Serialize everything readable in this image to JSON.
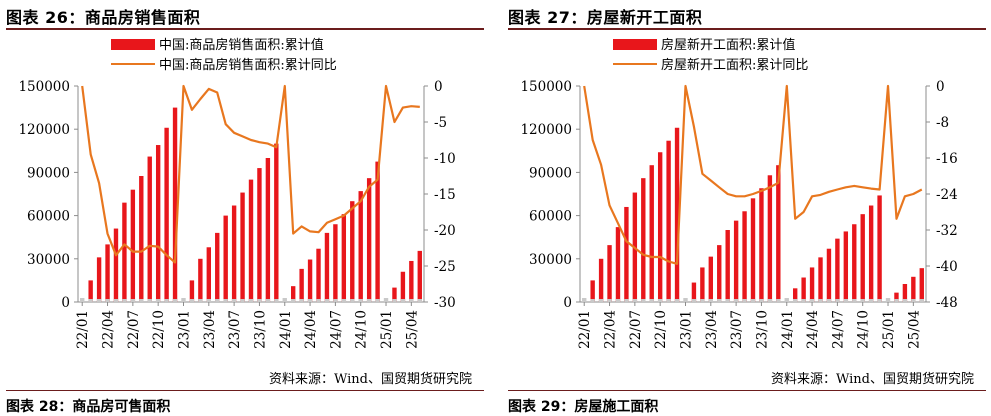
{
  "colors": {
    "bar": "#e8161b",
    "line": "#e8771f",
    "axis": "#8c8c8c",
    "bar_small": "#c9c9c9",
    "rule": "#6b1d1d"
  },
  "chart_data": [
    {
      "type": "bar",
      "figure_title": "图表 26：商品房销售面积",
      "source": "资料来源：Wind、国贸期货研究院",
      "legend": [
        "中国:商品房销售面积:累计值",
        "中国:商品房销售面积:累计同比"
      ],
      "legend_position": "top-center",
      "grid": false,
      "x": [
        "22/01",
        "22/02",
        "22/03",
        "22/04",
        "22/05",
        "22/06",
        "22/07",
        "22/08",
        "22/09",
        "22/10",
        "22/11",
        "22/12",
        "23/01",
        "23/02",
        "23/03",
        "23/04",
        "23/05",
        "23/06",
        "23/07",
        "23/08",
        "23/09",
        "23/10",
        "23/11",
        "23/12",
        "24/01",
        "24/02",
        "24/03",
        "24/04",
        "24/05",
        "24/06",
        "24/07",
        "24/08",
        "24/09",
        "24/10",
        "24/11",
        "24/12",
        "25/01",
        "25/02",
        "25/03",
        "25/04",
        "25/05"
      ],
      "x_tick_labels": [
        "22/01",
        "22/04",
        "22/07",
        "22/10",
        "23/01",
        "23/04",
        "23/07",
        "23/10",
        "24/01",
        "24/04",
        "24/07",
        "24/10",
        "25/01",
        "25/04"
      ],
      "y_left_ticks": [
        "0",
        "30000",
        "60000",
        "90000",
        "120000",
        "150000"
      ],
      "y_right_ticks": [
        "0",
        "-5",
        "-10",
        "-15",
        "-20",
        "-25",
        "-30"
      ],
      "ylim_left": [
        0,
        150000
      ],
      "ylim_right": [
        -30,
        0
      ],
      "series": [
        {
          "name": "中国:商品房销售面积:累计值",
          "axis": "left",
          "kind": "bar",
          "values": [
            null,
            15000,
            31000,
            40000,
            51000,
            69000,
            78000,
            87500,
            101000,
            109000,
            121000,
            135000,
            null,
            15000,
            30000,
            38000,
            48000,
            60000,
            67000,
            76000,
            85000,
            93000,
            100000,
            110000,
            null,
            11000,
            23000,
            29500,
            37000,
            48000,
            54000,
            61000,
            70000,
            77000,
            86000,
            97500,
            null,
            10000,
            21000,
            28500,
            35500
          ]
        },
        {
          "name": "中国:商品房销售面积:累计同比",
          "axis": "right",
          "kind": "line",
          "values": [
            0,
            -9.5,
            -13.5,
            -20.5,
            -23.5,
            -22,
            -23,
            -23,
            -22.2,
            -22.3,
            -23.5,
            -24.5,
            0,
            -3.3,
            -1.8,
            -0.4,
            -0.9,
            -5.3,
            -6.5,
            -7,
            -7.5,
            -7.8,
            -8,
            -8.5,
            0,
            -20.5,
            -19.5,
            -20.2,
            -20.3,
            -19,
            -18.5,
            -18,
            -17,
            -16,
            -14,
            -13,
            0,
            -5,
            -3,
            -2.8,
            -2.9
          ]
        }
      ]
    },
    {
      "type": "bar",
      "figure_title": "图表 27：房屋新开工面积",
      "source": "资料来源：Wind、国贸期货研究院",
      "legend": [
        "房屋新开工面积:累计值",
        "房屋新开工面积:累计同比"
      ],
      "legend_position": "top-center",
      "grid": false,
      "x": [
        "22/01",
        "22/02",
        "22/03",
        "22/04",
        "22/05",
        "22/06",
        "22/07",
        "22/08",
        "22/09",
        "22/10",
        "22/11",
        "22/12",
        "23/01",
        "23/02",
        "23/03",
        "23/04",
        "23/05",
        "23/06",
        "23/07",
        "23/08",
        "23/09",
        "23/10",
        "23/11",
        "23/12",
        "24/01",
        "24/02",
        "24/03",
        "24/04",
        "24/05",
        "24/06",
        "24/07",
        "24/08",
        "24/09",
        "24/10",
        "24/11",
        "24/12",
        "25/01",
        "25/02",
        "25/03",
        "25/04",
        "25/05"
      ],
      "x_tick_labels": [
        "22/01",
        "22/04",
        "22/07",
        "22/10",
        "23/01",
        "23/04",
        "23/07",
        "23/10",
        "24/01",
        "24/04",
        "24/07",
        "24/10",
        "25/01",
        "25/04"
      ],
      "y_left_ticks": [
        "0",
        "30000",
        "60000",
        "90000",
        "120000",
        "150000"
      ],
      "y_right_ticks": [
        "0",
        "-8",
        "-16",
        "-24",
        "-32",
        "-40",
        "-48"
      ],
      "ylim_left": [
        0,
        150000
      ],
      "ylim_right": [
        -48,
        0
      ],
      "series": [
        {
          "name": "房屋新开工面积:累计值",
          "axis": "left",
          "kind": "bar",
          "values": [
            null,
            15000,
            30000,
            39500,
            52000,
            66000,
            76000,
            86000,
            95000,
            104000,
            112000,
            121000,
            null,
            13500,
            24000,
            31500,
            39500,
            50000,
            56500,
            63000,
            72000,
            79000,
            88000,
            95000,
            null,
            9500,
            17000,
            24000,
            31000,
            37000,
            44000,
            49000,
            54000,
            61000,
            67000,
            74000,
            null,
            6500,
            12500,
            17500,
            23500
          ]
        },
        {
          "name": "房屋新开工面积:累计同比",
          "axis": "right",
          "kind": "line",
          "values": [
            0,
            -12,
            -17.5,
            -26.5,
            -30.5,
            -34.5,
            -36,
            -37.5,
            -38,
            -38,
            -39,
            -39.5,
            0,
            -9,
            -19.5,
            -21,
            -22.5,
            -24,
            -24.5,
            -24.5,
            -24,
            -23.3,
            -22.5,
            -21.5,
            0,
            -29.5,
            -28,
            -24.5,
            -24.2,
            -23.5,
            -23,
            -22.5,
            -22.2,
            -22.5,
            -22.8,
            -23,
            0,
            -29.5,
            -24.5,
            -24,
            -23
          ]
        }
      ]
    }
  ]
}
